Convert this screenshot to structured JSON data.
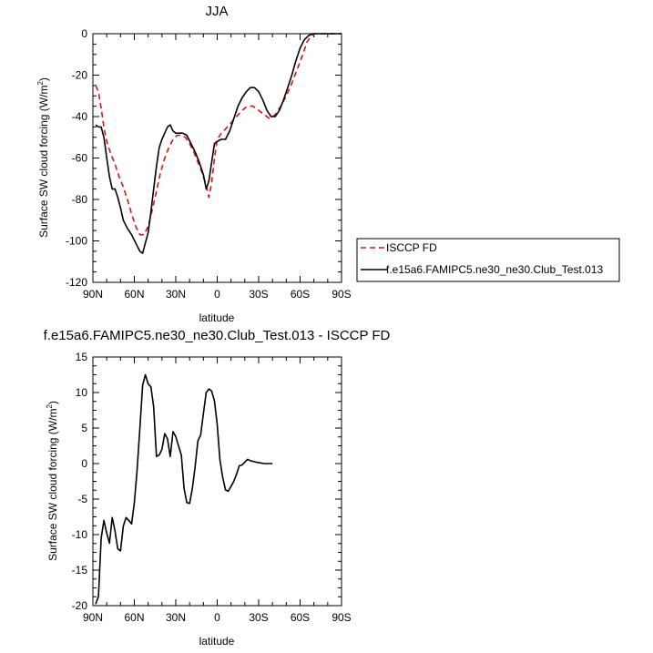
{
  "chart_data": [
    {
      "type": "line",
      "title": "JJA",
      "xlabel": "latitude",
      "ylabel": "Surface SW cloud forcing (W/m",
      "ylabel_sup": "2",
      "ylabel_close": ")",
      "ylim": [
        -120,
        0
      ],
      "xlim": [
        90,
        -90
      ],
      "xticks": [
        {
          "v": 90,
          "label": "90N"
        },
        {
          "v": 60,
          "label": "60N"
        },
        {
          "v": 30,
          "label": "30N"
        },
        {
          "v": 0,
          "label": "0"
        },
        {
          "v": -30,
          "label": "30S"
        },
        {
          "v": -60,
          "label": "60S"
        },
        {
          "v": -90,
          "label": "90S"
        }
      ],
      "yticks": [
        {
          "v": 0,
          "label": "0"
        },
        {
          "v": -20,
          "label": "-20"
        },
        {
          "v": -40,
          "label": "-40"
        },
        {
          "v": -60,
          "label": "-60"
        },
        {
          "v": -80,
          "label": "-80"
        },
        {
          "v": -100,
          "label": "-100"
        },
        {
          "v": -120,
          "label": "-120"
        }
      ],
      "legend": {
        "placement": "right"
      },
      "series": [
        {
          "name": "ISCCP FD",
          "color": "#dd1111",
          "dash": true,
          "points": [
            [
              88,
              -25
            ],
            [
              86,
              -28
            ],
            [
              84,
              -36
            ],
            [
              82,
              -45
            ],
            [
              80,
              -52
            ],
            [
              77,
              -58
            ],
            [
              74,
              -63
            ],
            [
              71,
              -69
            ],
            [
              68,
              -74
            ],
            [
              65,
              -80
            ],
            [
              62,
              -87
            ],
            [
              59,
              -93
            ],
            [
              56,
              -97
            ],
            [
              53,
              -97
            ],
            [
              50,
              -93
            ],
            [
              47,
              -85
            ],
            [
              44,
              -76
            ],
            [
              41,
              -67
            ],
            [
              38,
              -60
            ],
            [
              35,
              -55
            ],
            [
              32,
              -51
            ],
            [
              29,
              -49
            ],
            [
              26,
              -49
            ],
            [
              23,
              -50
            ],
            [
              20,
              -53
            ],
            [
              17,
              -57
            ],
            [
              14,
              -62
            ],
            [
              11,
              -67
            ],
            [
              8,
              -73
            ],
            [
              6,
              -79
            ],
            [
              4,
              -72
            ],
            [
              2,
              -60
            ],
            [
              0,
              -51
            ],
            [
              -3,
              -48
            ],
            [
              -6,
              -46
            ],
            [
              -10,
              -43
            ],
            [
              -14,
              -40
            ],
            [
              -18,
              -37
            ],
            [
              -22,
              -35
            ],
            [
              -26,
              -35
            ],
            [
              -30,
              -37
            ],
            [
              -34,
              -39
            ],
            [
              -38,
              -41
            ],
            [
              -42,
              -39
            ],
            [
              -46,
              -35
            ],
            [
              -50,
              -30
            ],
            [
              -54,
              -24
            ],
            [
              -58,
              -17
            ],
            [
              -62,
              -10
            ],
            [
              -65,
              -4
            ],
            [
              -68,
              -1
            ],
            [
              -71,
              0
            ],
            [
              -75,
              0
            ],
            [
              -80,
              0
            ],
            [
              -85,
              0
            ],
            [
              -90,
              0
            ]
          ]
        },
        {
          "name": "f.e15a6.FAMIPC5.ne30_ne30.Club_Test.013",
          "color": "#000000",
          "dash": false,
          "points": [
            [
              88,
              -44
            ],
            [
              86,
              -45
            ],
            [
              84,
              -45
            ],
            [
              82,
              -50
            ],
            [
              80,
              -60
            ],
            [
              78,
              -69
            ],
            [
              76,
              -75
            ],
            [
              74,
              -75
            ],
            [
              72,
              -79
            ],
            [
              70,
              -84
            ],
            [
              68,
              -90
            ],
            [
              65,
              -94
            ],
            [
              62,
              -97
            ],
            [
              59,
              -101
            ],
            [
              56,
              -105
            ],
            [
              54,
              -106
            ],
            [
              52,
              -101
            ],
            [
              50,
              -96
            ],
            [
              48,
              -86
            ],
            [
              46,
              -75
            ],
            [
              44,
              -64
            ],
            [
              42,
              -55
            ],
            [
              40,
              -51
            ],
            [
              38,
              -48
            ],
            [
              36,
              -45
            ],
            [
              34,
              -44
            ],
            [
              32,
              -47
            ],
            [
              30,
              -48
            ],
            [
              28,
              -48
            ],
            [
              25,
              -48
            ],
            [
              22,
              -49
            ],
            [
              19,
              -53
            ],
            [
              16,
              -57
            ],
            [
              13,
              -62
            ],
            [
              10,
              -68
            ],
            [
              8,
              -75
            ],
            [
              6,
              -71
            ],
            [
              4,
              -62
            ],
            [
              2,
              -53
            ],
            [
              0,
              -52
            ],
            [
              -3,
              -51
            ],
            [
              -6,
              -51
            ],
            [
              -9,
              -47
            ],
            [
              -12,
              -41
            ],
            [
              -15,
              -35
            ],
            [
              -18,
              -31
            ],
            [
              -21,
              -28
            ],
            [
              -24,
              -26
            ],
            [
              -27,
              -26
            ],
            [
              -30,
              -28
            ],
            [
              -33,
              -32
            ],
            [
              -36,
              -37
            ],
            [
              -39,
              -40
            ],
            [
              -42,
              -40
            ],
            [
              -45,
              -37
            ],
            [
              -48,
              -32
            ],
            [
              -51,
              -26
            ],
            [
              -54,
              -20
            ],
            [
              -57,
              -13
            ],
            [
              -60,
              -7
            ],
            [
              -63,
              -3
            ],
            [
              -66,
              -1
            ],
            [
              -69,
              0
            ],
            [
              -72,
              0
            ],
            [
              -76,
              0
            ],
            [
              -80,
              0
            ],
            [
              -85,
              0
            ],
            [
              -90,
              0
            ]
          ]
        }
      ]
    },
    {
      "type": "line",
      "title": "f.e15a6.FAMIPC5.ne30_ne30.Club_Test.013 - ISCCP FD",
      "xlabel": "latitude",
      "ylabel": "Surface SW cloud forcing (W/m",
      "ylabel_sup": "2",
      "ylabel_close": ")",
      "ylim": [
        -20,
        15
      ],
      "xlim": [
        90,
        -90
      ],
      "xticks": [
        {
          "v": 90,
          "label": "90N"
        },
        {
          "v": 60,
          "label": "60N"
        },
        {
          "v": 30,
          "label": "30N"
        },
        {
          "v": 0,
          "label": "0"
        },
        {
          "v": -30,
          "label": "30S"
        },
        {
          "v": -60,
          "label": "60S"
        },
        {
          "v": -90,
          "label": "90S"
        }
      ],
      "yticks": [
        {
          "v": 15,
          "label": "15"
        },
        {
          "v": 10,
          "label": "10"
        },
        {
          "v": 5,
          "label": "5"
        },
        {
          "v": 0,
          "label": "0"
        },
        {
          "v": -5,
          "label": "-5"
        },
        {
          "v": -10,
          "label": "-10"
        },
        {
          "v": -15,
          "label": "-15"
        },
        {
          "v": -20,
          "label": "-20"
        }
      ],
      "series": [
        {
          "color": "#000000",
          "dash": false,
          "points": [
            [
              88,
              -19.8
            ],
            [
              86,
              -18.7
            ],
            [
              84,
              -10.5
            ],
            [
              82,
              -8.0
            ],
            [
              80,
              -9.8
            ],
            [
              78,
              -11.2
            ],
            [
              76,
              -7.6
            ],
            [
              74,
              -9.5
            ],
            [
              72,
              -12.0
            ],
            [
              70,
              -12.3
            ],
            [
              68,
              -8.8
            ],
            [
              66,
              -7.6
            ],
            [
              64,
              -8.0
            ],
            [
              62,
              -8.5
            ],
            [
              60,
              -5.5
            ],
            [
              58,
              -1.0
            ],
            [
              56,
              5.0
            ],
            [
              54,
              11.0
            ],
            [
              52,
              12.5
            ],
            [
              50,
              11.2
            ],
            [
              48,
              10.8
            ],
            [
              46,
              8.0
            ],
            [
              44,
              1.0
            ],
            [
              42,
              1.2
            ],
            [
              40,
              2.0
            ],
            [
              38,
              4.2
            ],
            [
              36,
              3.5
            ],
            [
              34,
              1.0
            ],
            [
              32,
              4.5
            ],
            [
              30,
              3.8
            ],
            [
              28,
              2.5
            ],
            [
              26,
              1.2
            ],
            [
              24,
              -3.5
            ],
            [
              22,
              -5.5
            ],
            [
              20,
              -5.6
            ],
            [
              18,
              -3.5
            ],
            [
              16,
              -0.5
            ],
            [
              14,
              3.2
            ],
            [
              12,
              4.0
            ],
            [
              10,
              7.0
            ],
            [
              8,
              10.0
            ],
            [
              6,
              10.5
            ],
            [
              4,
              10.2
            ],
            [
              2,
              8.8
            ],
            [
              0,
              5.5
            ],
            [
              -2,
              0.5
            ],
            [
              -4,
              -2.0
            ],
            [
              -6,
              -3.7
            ],
            [
              -8,
              -3.9
            ],
            [
              -10,
              -3.2
            ],
            [
              -12,
              -2.5
            ],
            [
              -14,
              -1.5
            ],
            [
              -16,
              -0.3
            ],
            [
              -18,
              -0.2
            ],
            [
              -20,
              0.2
            ],
            [
              -22,
              0.6
            ],
            [
              -24,
              0.4
            ],
            [
              -28,
              0.2
            ],
            [
              -34,
              0
            ],
            [
              -40,
              0
            ]
          ]
        }
      ]
    }
  ]
}
